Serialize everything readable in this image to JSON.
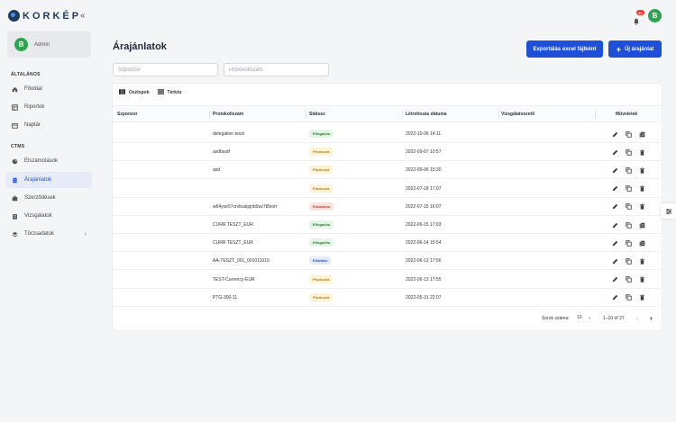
{
  "app": {
    "logo_text": "KORKÉP"
  },
  "user": {
    "avatar_letter": "B",
    "name": "Admin"
  },
  "notifications": {
    "count": "51"
  },
  "sidebar": {
    "sections": [
      {
        "title": "ÁLTALÁNOS"
      },
      {
        "title": "CTMS"
      }
    ],
    "items": [
      {
        "label": "Főoldal",
        "icon": "home-icon"
      },
      {
        "label": "Riportok",
        "icon": "grid-icon"
      },
      {
        "label": "Naptár",
        "icon": "calendar-icon"
      },
      {
        "label": "Elszámolások",
        "icon": "pie-chart-icon"
      },
      {
        "label": "Árajánlatok",
        "icon": "document-icon",
        "active": true
      },
      {
        "label": "Szerződések",
        "icon": "briefcase-icon"
      },
      {
        "label": "Vizsgálatok",
        "icon": "clipboard-icon"
      },
      {
        "label": "Törzsadatok",
        "icon": "layers-icon"
      }
    ]
  },
  "page": {
    "title": "Árajánlatok",
    "export_label": "Exportálás excel fájlként",
    "new_label": "Új árajánlat"
  },
  "filters": {
    "sponsor_placeholder": "Szponzor",
    "protocol_placeholder": "Protokollszám"
  },
  "toolbar": {
    "columns_label": "Oszlopok",
    "density_label": "Térköz"
  },
  "table": {
    "headers": [
      "Szponzor",
      "Protokollszám",
      "Státusz",
      "Létrehozás dátuma",
      "Vizsgálatvezető",
      "Műveletek"
    ],
    "rows": [
      {
        "sponsor": "",
        "protocol": "delegation teszt",
        "status": "Elfogadva",
        "status_color": "green",
        "created": "2022-10-06 14:11",
        "lead": "",
        "copy_alt": true
      },
      {
        "sponsor": "",
        "protocol": "asdfasdf",
        "status": "Piszkozat",
        "status_color": "yellow",
        "created": "2022-09-07 10:57",
        "lead": "",
        "copy_alt": false
      },
      {
        "sponsor": "",
        "protocol": "asd",
        "status": "Piszkozat",
        "status_color": "yellow",
        "created": "2022-09-06 15:30",
        "lead": "",
        "copy_alt": false
      },
      {
        "sponsor": "",
        "protocol": "",
        "status": "Piszkozat",
        "status_color": "yellow",
        "created": "2022-07-18 17:07",
        "lead": "",
        "copy_alt": false
      },
      {
        "sponsor": "",
        "protocol": "w64yxe57crvbusipjnb9uv7t8zort",
        "status": "Elutasítva",
        "status_color": "red",
        "created": "2022-07-15 16:07",
        "lead": "",
        "copy_alt": false
      },
      {
        "sponsor": "",
        "protocol": "CURR TESZT_EUR",
        "status": "Elfogadva",
        "status_color": "green",
        "created": "2022-06-15 17:03",
        "lead": "",
        "copy_alt": true
      },
      {
        "sponsor": "",
        "protocol": "CURR TESZT_EUR",
        "status": "Elfogadva",
        "status_color": "green",
        "created": "2022-06-14 15:54",
        "lead": "",
        "copy_alt": true
      },
      {
        "sponsor": "",
        "protocol": "AA-TESZT_001_001011010",
        "status": "Elküldve",
        "status_color": "blue",
        "created": "2022-06-13 17:56",
        "lead": "",
        "copy_alt": false
      },
      {
        "sponsor": "",
        "protocol": "TEST-Currency-EUR",
        "status": "Piszkozat",
        "status_color": "yellow",
        "created": "2022-06-13 17:55",
        "lead": "",
        "copy_alt": false
      },
      {
        "sponsor": "",
        "protocol": "PTG-300-11",
        "status": "Piszkozat",
        "status_color": "yellow",
        "created": "2022-05-31 22:07",
        "lead": "",
        "copy_alt": false
      }
    ]
  },
  "pagination": {
    "rows_label": "Sorok száma:",
    "rows_value": "10",
    "range": "1–10 of 27"
  },
  "colors": {
    "primary": "#1d4fd8",
    "avatar": "#2ea44f",
    "badge_red": "#e53935"
  }
}
